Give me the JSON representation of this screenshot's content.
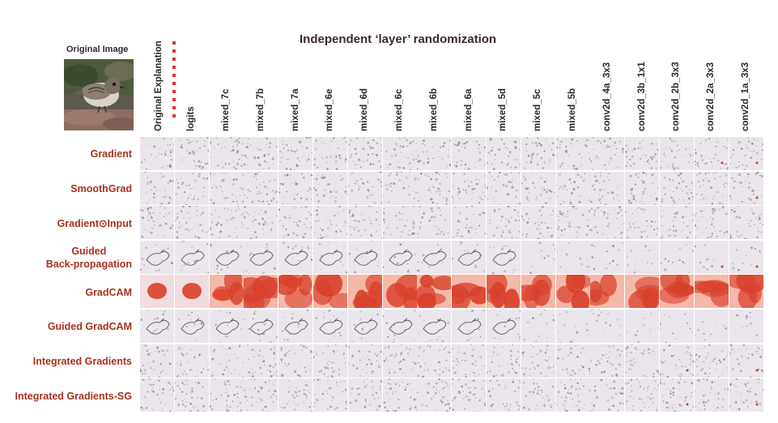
{
  "title": "Independent ‘layer’ randomization",
  "original": {
    "label": "Original Image",
    "explanation_label": "Original Explanation"
  },
  "columns": [
    "logits",
    "mixed_7c",
    "mixed_7b",
    "mixed_7a",
    "mixed_6e",
    "mixed_6d",
    "mixed_6c",
    "mixed_6b",
    "mixed_6a",
    "mixed_5d",
    "mixed_5c",
    "mixed_5b",
    "conv2d_4a_3x3",
    "conv2d_3b_1x1",
    "conv2d_2b_3x3",
    "conv2d_2a_3x3",
    "conv2d_1a_3x3"
  ],
  "rows": [
    {
      "label": "Gradient",
      "kind": "noise"
    },
    {
      "label": "SmoothGrad",
      "kind": "noise"
    },
    {
      "label": "Gradient⊙Input",
      "kind": "noise"
    },
    {
      "label": "Guided Back-propagation",
      "line1": "Guided",
      "line2": "Back-propagation",
      "kind": "sketch"
    },
    {
      "label": "GradCAM",
      "kind": "heat"
    },
    {
      "label": "Guided GradCAM",
      "kind": "sketch"
    },
    {
      "label": "Integrated Gradients",
      "kind": "noise"
    },
    {
      "label": "Integrated Gradients-SG",
      "kind": "noise"
    }
  ],
  "colors": {
    "row_label": "#a8321e",
    "heat_strong": "#d9412c",
    "heat_light": "#f4b9a8",
    "noise_bg": "#ebe6ec",
    "dots": "#d83a2a"
  }
}
